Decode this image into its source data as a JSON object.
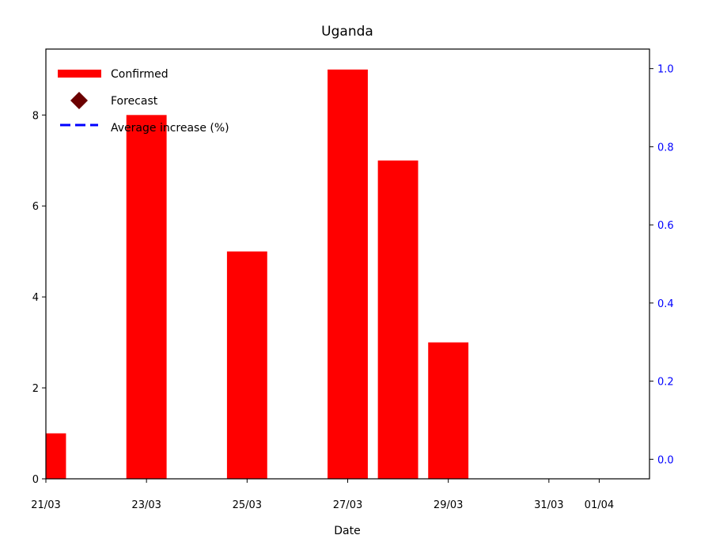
{
  "chart_data": {
    "type": "bar",
    "title": "Uganda",
    "xlabel": "Date",
    "ylabel": "",
    "x_tick_labels": [
      "21/03",
      "23/03",
      "25/03",
      "27/03",
      "29/03",
      "31/03",
      "01/04"
    ],
    "x_tick_days": [
      21,
      23,
      25,
      27,
      29,
      31,
      32
    ],
    "xlim_days": [
      21,
      33
    ],
    "ylim": [
      0,
      9.45
    ],
    "y_ticks": [
      0,
      2,
      4,
      6,
      8
    ],
    "y_right_ticks": [
      0.0,
      0.2,
      0.4,
      0.6,
      0.8,
      1.0
    ],
    "y_right_lim": [
      -0.05,
      1.05
    ],
    "grid": false,
    "legend_position": "top-left",
    "series": [
      {
        "name": "Confirmed",
        "color": "#ff0000",
        "points": [
          {
            "x": "21/03",
            "y": 1
          },
          {
            "x": "23/03",
            "y": 8
          },
          {
            "x": "25/03",
            "y": 5
          },
          {
            "x": "27/03",
            "y": 9
          },
          {
            "x": "28/03",
            "y": 7
          },
          {
            "x": "29/03",
            "y": 3
          }
        ]
      },
      {
        "name": "Forecast",
        "color": "#6b0000",
        "marker": "diamond",
        "points": []
      },
      {
        "name": "Average increase (%)",
        "color": "#0000ff",
        "line_style": "dashed",
        "axis": "right",
        "points": []
      }
    ]
  }
}
